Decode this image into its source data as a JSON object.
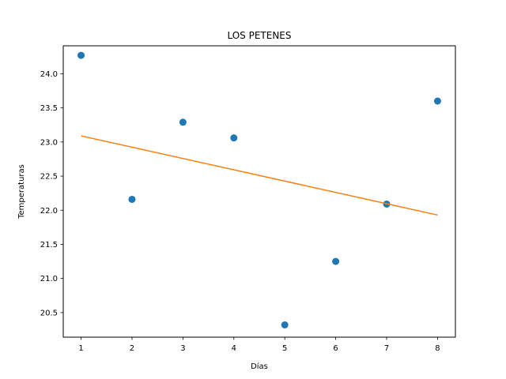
{
  "chart_data": {
    "type": "scatter",
    "title": "LOS PETENES",
    "xlabel": "Días",
    "ylabel": "Temperaturas",
    "xlim": [
      0.65,
      8.35
    ],
    "ylim": [
      20.14,
      24.41
    ],
    "xticks": [
      1,
      2,
      3,
      4,
      5,
      6,
      7,
      8
    ],
    "xtick_labels": [
      "1",
      "2",
      "3",
      "4",
      "5",
      "6",
      "7",
      "8"
    ],
    "yticks": [
      20.5,
      21.0,
      21.5,
      22.0,
      22.5,
      23.0,
      23.5,
      24.0
    ],
    "ytick_labels": [
      "20.5",
      "21.0",
      "21.5",
      "22.0",
      "22.5",
      "23.0",
      "23.5",
      "24.0"
    ],
    "grid": false,
    "series": [
      {
        "type": "scatter",
        "color": "#1f77b4",
        "x": [
          1,
          2,
          3,
          4,
          5,
          6,
          7,
          8
        ],
        "y": [
          24.27,
          22.16,
          23.29,
          23.06,
          20.32,
          21.25,
          22.09,
          23.6
        ]
      },
      {
        "type": "line",
        "color": "#ff7f0e",
        "x": [
          1,
          8
        ],
        "y": [
          23.09,
          21.93
        ]
      }
    ]
  }
}
